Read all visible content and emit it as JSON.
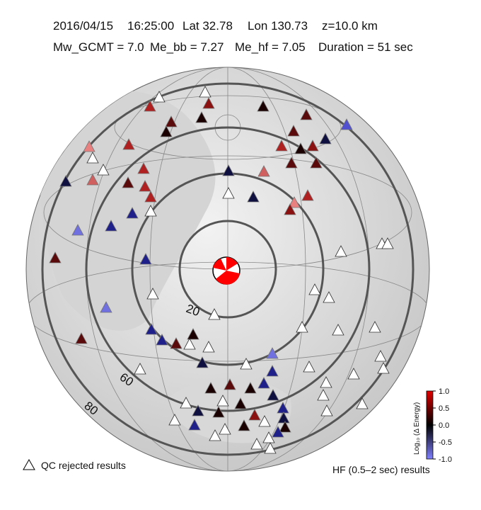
{
  "header": {
    "line1": [
      "2016/04/15",
      "16:25:00",
      "Lat 32.78",
      "Lon 130.73",
      "z=10.0 km"
    ],
    "line2": [
      "Mw_GCMT = 7.0",
      "Me_bb = 7.27",
      "Me_hf = 7.05",
      "Duration = 51 sec"
    ]
  },
  "rings": [
    "20",
    "60",
    "80"
  ],
  "legend": {
    "rejected": "QC rejected results",
    "results": "HF (0.5–2 sec) results"
  },
  "colorbar": {
    "label": "Log₁₀ (Δ Energy)",
    "ylim": [
      -1,
      1
    ],
    "ticks": [
      {
        "value": 1,
        "label": "1.0"
      },
      {
        "value": 0.5,
        "label": "0.5"
      },
      {
        "value": 0,
        "label": "0.0"
      },
      {
        "value": -0.5,
        "label": "-0.5"
      },
      {
        "value": -1,
        "label": "-1.0"
      }
    ]
  }
}
